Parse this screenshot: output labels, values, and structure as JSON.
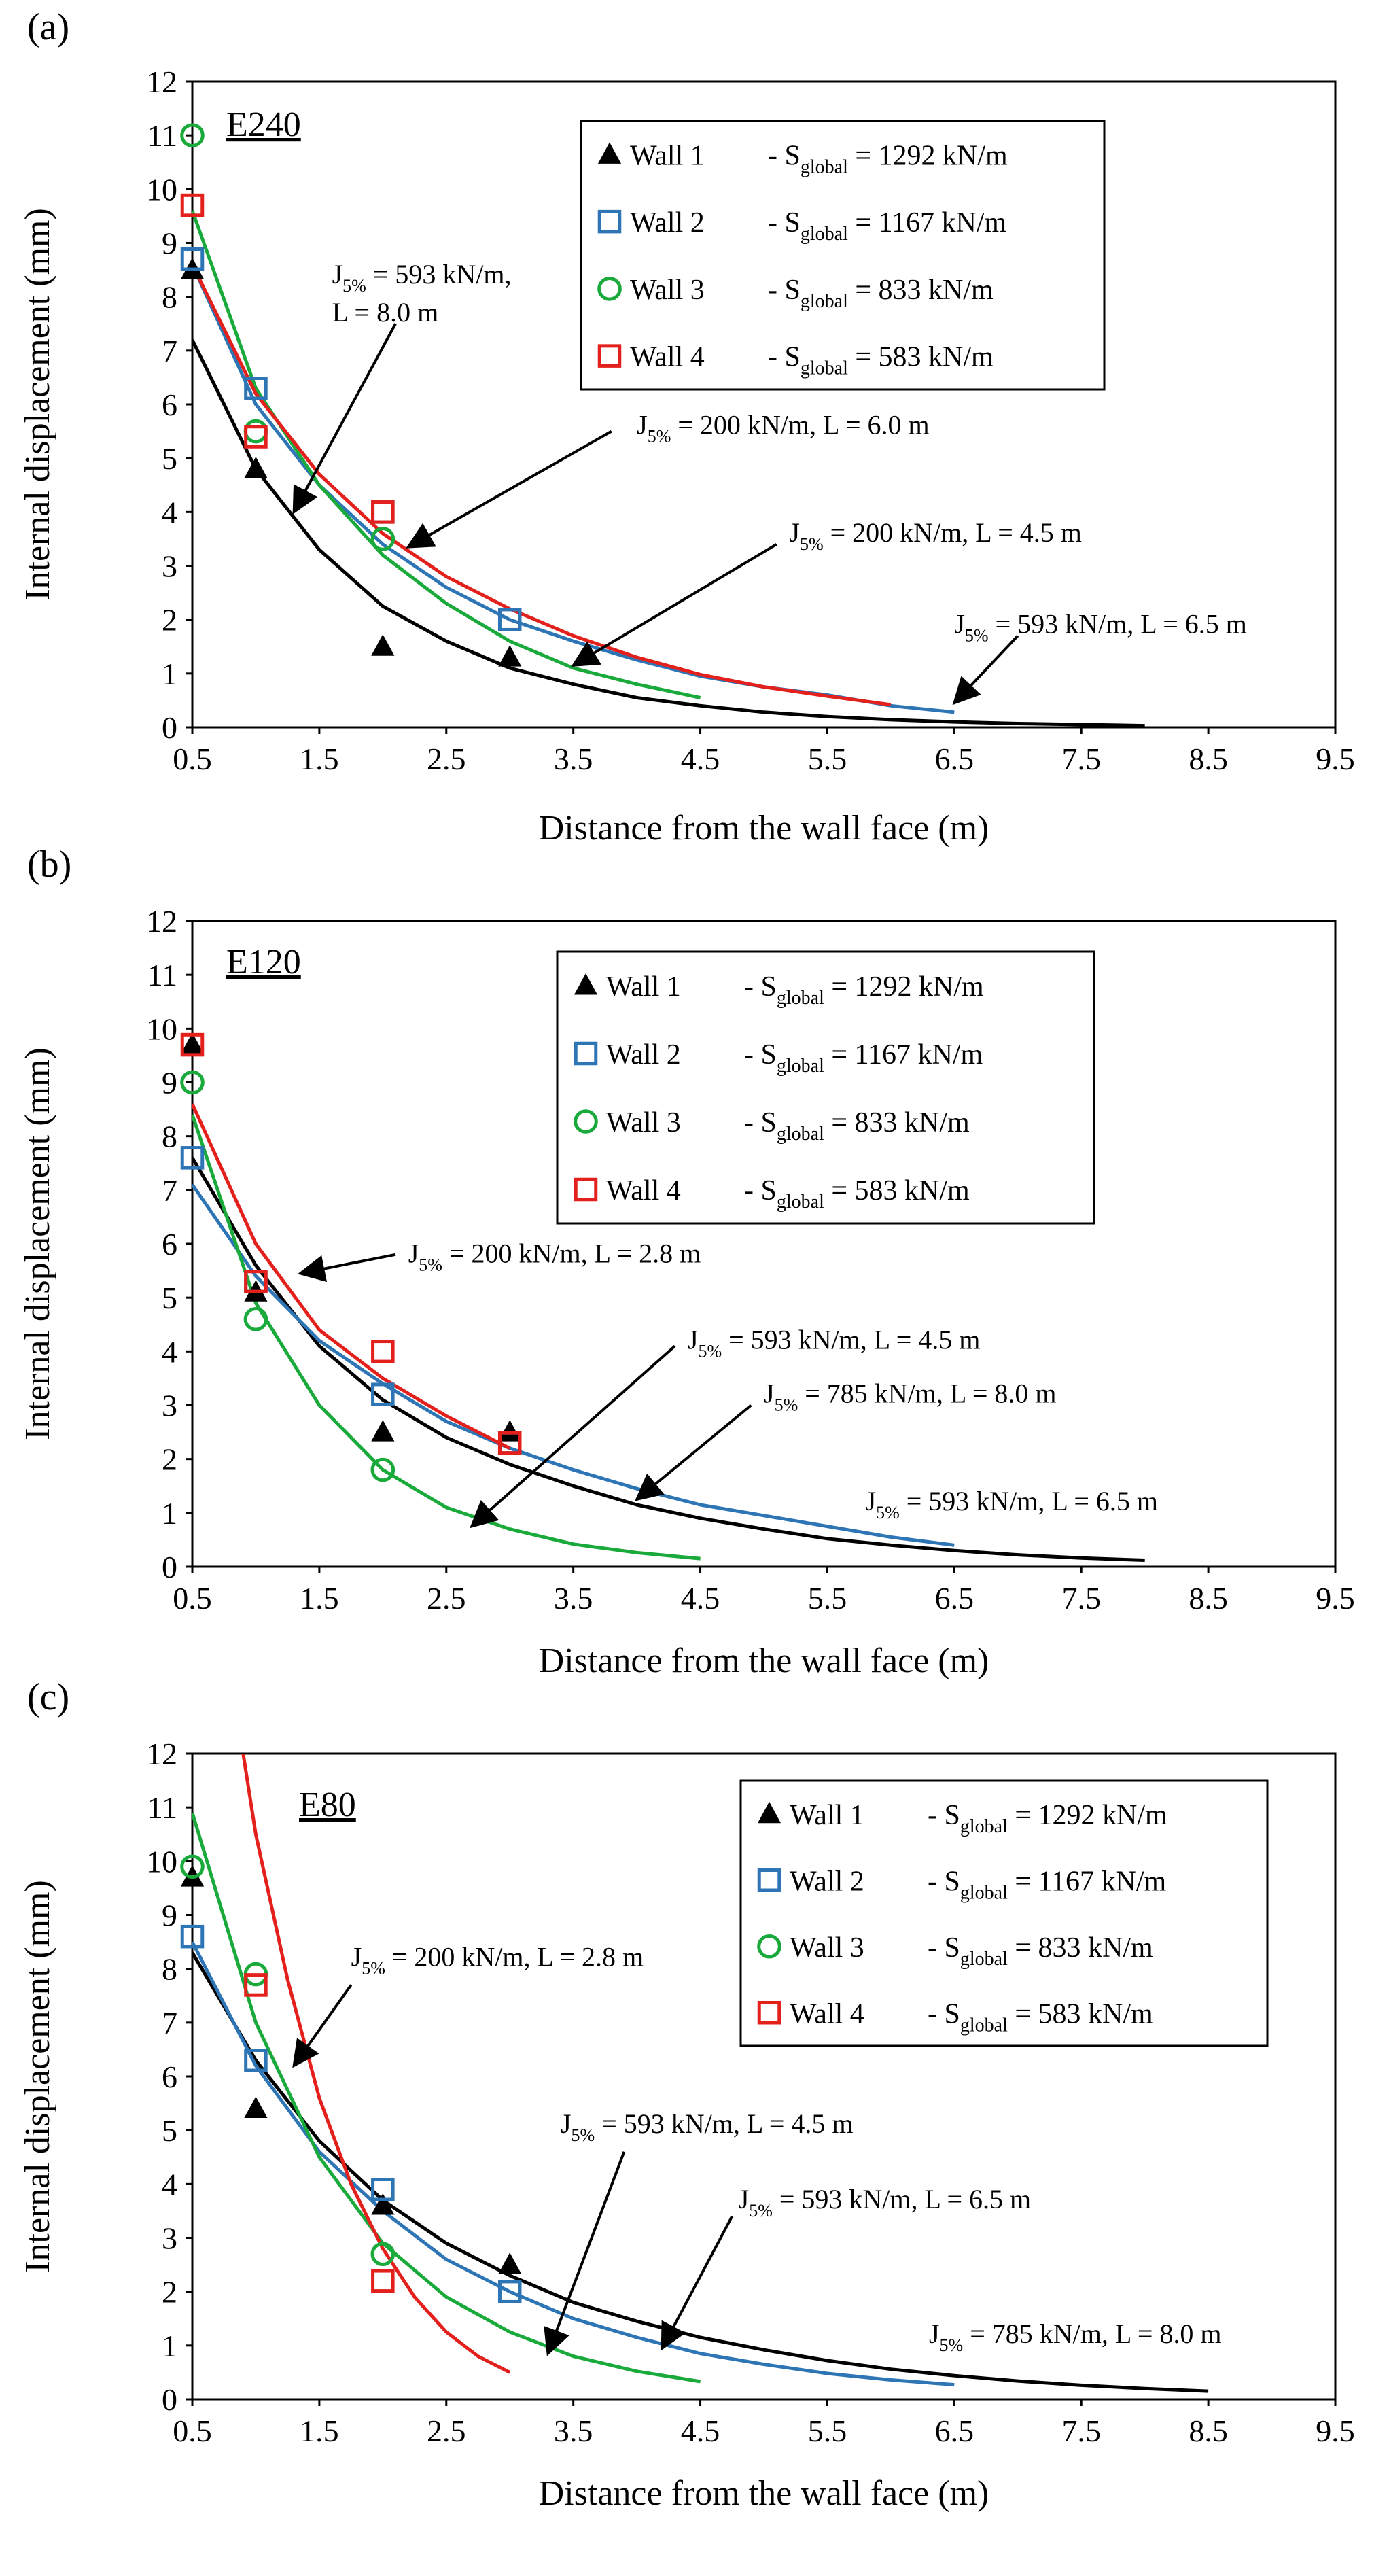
{
  "chart_data": [
    {
      "panel": "(a)",
      "type": "scatter",
      "case_label": "E240",
      "xlabel": "Distance from the wall face (m)",
      "ylabel": "Internal displacement (mm)",
      "xlim": [
        0.5,
        9.5
      ],
      "ylim": [
        0,
        12
      ],
      "xticks": [
        "0.5",
        "1.5",
        "2.5",
        "3.5",
        "4.5",
        "5.5",
        "6.5",
        "7.5",
        "8.5",
        "9.5"
      ],
      "yticks": [
        "0",
        "1",
        "2",
        "3",
        "4",
        "5",
        "6",
        "7",
        "8",
        "9",
        "10",
        "11",
        "12"
      ],
      "legend_position": "top-right",
      "legend": [
        {
          "wall": "Wall 1",
          "prefix": "- S",
          "sub": "global",
          "value": " = 1292 kN/m",
          "marker": "triangle",
          "color": "#000000"
        },
        {
          "wall": "Wall 2",
          "prefix": "- S",
          "sub": "global",
          "value": " = 1167 kN/m",
          "marker": "square",
          "color": "#2e75b6"
        },
        {
          "wall": "Wall 3",
          "prefix": "- S",
          "sub": "global",
          "value": " = 833 kN/m",
          "marker": "circle",
          "color": "#1aaa3c"
        },
        {
          "wall": "Wall 4",
          "prefix": "- S",
          "sub": "global",
          "value": " = 583 kN/m",
          "marker": "square",
          "color": "#e3201b"
        }
      ],
      "points": [
        {
          "series": "Wall 1",
          "marker": "triangle",
          "color": "#000000",
          "x": [
            0.5,
            1.0,
            2.0,
            3.0
          ],
          "y": [
            8.5,
            4.8,
            1.5,
            1.3
          ]
        },
        {
          "series": "Wall 2",
          "marker": "square",
          "color": "#2e75b6",
          "x": [
            0.5,
            1.0,
            2.0,
            3.0
          ],
          "y": [
            8.7,
            6.3,
            4.0,
            2.0
          ]
        },
        {
          "series": "Wall 3",
          "marker": "circle",
          "color": "#1aaa3c",
          "x": [
            0.5,
            1.0,
            2.0
          ],
          "y": [
            11.0,
            5.5,
            3.5
          ]
        },
        {
          "series": "Wall 4",
          "marker": "square",
          "color": "#e3201b",
          "x": [
            0.5,
            1.0,
            2.0
          ],
          "y": [
            9.7,
            5.4,
            4.0
          ]
        }
      ],
      "curves": [
        {
          "color": "#000000",
          "x": [
            0.5,
            1.0,
            1.5,
            2.0,
            2.5,
            3.0,
            3.5,
            4.0,
            4.5,
            5.0,
            5.5,
            6.0,
            6.5,
            7.0,
            7.5,
            8.0
          ],
          "y": [
            7.2,
            4.8,
            3.3,
            2.25,
            1.6,
            1.1,
            0.8,
            0.55,
            0.4,
            0.28,
            0.2,
            0.14,
            0.1,
            0.07,
            0.05,
            0.03
          ]
        },
        {
          "color": "#2e75b6",
          "x": [
            0.5,
            1.0,
            1.5,
            2.0,
            2.5,
            3.0,
            3.5,
            4.0,
            4.5,
            5.0,
            5.5,
            6.0,
            6.5
          ],
          "y": [
            8.6,
            6.0,
            4.5,
            3.4,
            2.6,
            2.0,
            1.6,
            1.25,
            0.95,
            0.75,
            0.6,
            0.4,
            0.28
          ]
        },
        {
          "color": "#1aaa3c",
          "x": [
            0.5,
            1.0,
            1.5,
            2.0,
            2.5,
            3.0,
            3.5,
            4.0,
            4.5
          ],
          "y": [
            9.6,
            6.3,
            4.5,
            3.2,
            2.3,
            1.6,
            1.1,
            0.8,
            0.55
          ]
        },
        {
          "color": "#e3201b",
          "x": [
            0.5,
            1.0,
            1.5,
            2.0,
            2.5,
            3.0,
            3.5,
            4.0,
            4.5,
            5.0,
            5.5,
            6.0
          ],
          "y": [
            8.6,
            6.2,
            4.7,
            3.6,
            2.8,
            2.2,
            1.7,
            1.3,
            0.98,
            0.75,
            0.58,
            0.42
          ]
        }
      ],
      "annotations": [
        {
          "line1_pre": "J",
          "line1_sub": "5%",
          "line1_post": " = 593 kN/m,",
          "line2": "L = 8.0 m",
          "text_x": 1.6,
          "text_y": 8.25,
          "tail_x": 2.1,
          "tail_y": 7.5,
          "head_x": 1.3,
          "head_y": 4.0
        },
        {
          "line1_pre": "J",
          "line1_sub": "5%",
          "line1_post": " = 200 kN/m, L = 6.0 m",
          "line2": "",
          "text_x": 4.0,
          "text_y": 5.45,
          "tail_x": 3.8,
          "tail_y": 5.5,
          "head_x": 2.2,
          "head_y": 3.35
        },
        {
          "line1_pre": "J",
          "line1_sub": "5%",
          "line1_post": " = 200 kN/m, L = 4.5 m",
          "line2": "",
          "text_x": 5.2,
          "text_y": 3.45,
          "tail_x": 5.1,
          "tail_y": 3.4,
          "head_x": 3.5,
          "head_y": 1.15
        },
        {
          "line1_pre": "J",
          "line1_sub": "5%",
          "line1_post": " = 593 kN/m, L = 6.5 m",
          "line2": "",
          "text_x": 6.5,
          "text_y": 1.75,
          "tail_x": 7.0,
          "tail_y": 1.7,
          "head_x": 6.5,
          "head_y": 0.45
        }
      ]
    },
    {
      "panel": "(b)",
      "type": "scatter",
      "case_label": "E120",
      "xlabel": "Distance from the wall face (m)",
      "ylabel": "Internal displacement (mm)",
      "xlim": [
        0.5,
        9.5
      ],
      "ylim": [
        0,
        12
      ],
      "xticks": [
        "0.5",
        "1.5",
        "2.5",
        "3.5",
        "4.5",
        "5.5",
        "6.5",
        "7.5",
        "8.5",
        "9.5"
      ],
      "yticks": [
        "0",
        "1",
        "2",
        "3",
        "4",
        "5",
        "6",
        "7",
        "8",
        "9",
        "10",
        "11",
        "12"
      ],
      "legend_position": "top-right",
      "legend": [
        {
          "wall": "Wall 1",
          "prefix": "- S",
          "sub": "global",
          "value": " = 1292 kN/m",
          "marker": "triangle",
          "color": "#000000"
        },
        {
          "wall": "Wall 2",
          "prefix": "- S",
          "sub": "global",
          "value": " = 1167 kN/m",
          "marker": "square",
          "color": "#2e75b6"
        },
        {
          "wall": "Wall 3",
          "prefix": "- S",
          "sub": "global",
          "value": " = 833 kN/m",
          "marker": "circle",
          "color": "#1aaa3c"
        },
        {
          "wall": "Wall 4",
          "prefix": "- S",
          "sub": "global",
          "value": " = 583 kN/m",
          "marker": "square",
          "color": "#e3201b"
        }
      ],
      "points": [
        {
          "series": "Wall 1",
          "marker": "triangle",
          "color": "#000000",
          "x": [
            0.5,
            1.0,
            2.0,
            3.0
          ],
          "y": [
            9.7,
            5.1,
            2.5,
            2.5
          ]
        },
        {
          "series": "Wall 2",
          "marker": "square",
          "color": "#2e75b6",
          "x": [
            0.5,
            1.0,
            2.0,
            3.0
          ],
          "y": [
            7.6,
            5.3,
            3.2,
            2.3
          ]
        },
        {
          "series": "Wall 3",
          "marker": "circle",
          "color": "#1aaa3c",
          "x": [
            0.5,
            1.0,
            2.0
          ],
          "y": [
            9.0,
            4.6,
            1.8
          ]
        },
        {
          "series": "Wall 4",
          "marker": "square",
          "color": "#e3201b",
          "x": [
            0.5,
            1.0,
            2.0,
            3.0
          ],
          "y": [
            9.7,
            5.3,
            4.0,
            2.3
          ]
        }
      ],
      "curves": [
        {
          "color": "#000000",
          "x": [
            0.5,
            1.0,
            1.5,
            2.0,
            2.5,
            3.0,
            3.5,
            4.0,
            4.5,
            5.0,
            5.5,
            6.0,
            6.5,
            7.0,
            7.5,
            8.0
          ],
          "y": [
            7.6,
            5.6,
            4.1,
            3.1,
            2.4,
            1.9,
            1.5,
            1.15,
            0.9,
            0.7,
            0.52,
            0.4,
            0.3,
            0.22,
            0.16,
            0.12
          ]
        },
        {
          "color": "#2e75b6",
          "x": [
            0.5,
            1.0,
            1.5,
            2.0,
            2.5,
            3.0,
            3.5,
            4.0,
            4.5,
            5.0,
            5.5,
            6.0,
            6.5
          ],
          "y": [
            7.1,
            5.4,
            4.2,
            3.4,
            2.7,
            2.2,
            1.8,
            1.45,
            1.15,
            0.95,
            0.75,
            0.55,
            0.4
          ]
        },
        {
          "color": "#1aaa3c",
          "x": [
            0.5,
            1.0,
            1.5,
            2.0,
            2.5,
            3.0,
            3.5,
            4.0,
            4.5
          ],
          "y": [
            8.4,
            4.9,
            3.0,
            1.8,
            1.1,
            0.7,
            0.42,
            0.26,
            0.15
          ]
        },
        {
          "color": "#e3201b",
          "x": [
            0.5,
            1.0,
            1.5,
            2.0,
            2.5,
            3.0
          ],
          "y": [
            8.6,
            6.0,
            4.4,
            3.5,
            2.8,
            2.2
          ]
        }
      ],
      "annotations": [
        {
          "line1_pre": "J",
          "line1_sub": "5%",
          "line1_post": " = 200 kN/m, L = 2.8 m",
          "line2": "",
          "text_x": 2.2,
          "text_y": 5.65,
          "tail_x": 2.1,
          "tail_y": 5.8,
          "head_x": 1.35,
          "head_y": 5.45
        },
        {
          "line1_pre": "J",
          "line1_sub": "5%",
          "line1_post": " = 593 kN/m, L = 4.5 m",
          "line2": "",
          "text_x": 4.4,
          "text_y": 4.05,
          "tail_x": 4.3,
          "tail_y": 4.1,
          "head_x": 2.7,
          "head_y": 0.75
        },
        {
          "line1_pre": "J",
          "line1_sub": "5%",
          "line1_post": " = 785 kN/m, L = 8.0 m",
          "line2": "",
          "text_x": 5.0,
          "text_y": 3.05,
          "tail_x": 4.9,
          "tail_y": 3.0,
          "head_x": 4.0,
          "head_y": 1.25
        },
        {
          "line1_pre": "J",
          "line1_sub": "5%",
          "line1_post": " = 593 kN/m, L = 6.5 m",
          "line2": "",
          "text_x": 5.8,
          "text_y": 1.05,
          "tail_x": 0,
          "tail_y": 0,
          "head_x": 0,
          "head_y": 0
        }
      ]
    },
    {
      "panel": "(c)",
      "type": "scatter",
      "case_label": "E80",
      "xlabel": "Distance from the wall face (m)",
      "ylabel": "Internal displacement (mm)",
      "xlim": [
        0.5,
        9.5
      ],
      "ylim": [
        0,
        12
      ],
      "xticks": [
        "0.5",
        "1.5",
        "2.5",
        "3.5",
        "4.5",
        "5.5",
        "6.5",
        "7.5",
        "8.5",
        "9.5"
      ],
      "yticks": [
        "0",
        "1",
        "2",
        "3",
        "4",
        "5",
        "6",
        "7",
        "8",
        "9",
        "10",
        "11",
        "12"
      ],
      "legend_position": "top-right",
      "legend": [
        {
          "wall": "Wall 1",
          "prefix": "- S",
          "sub": "global",
          "value": " = 1292 kN/m",
          "marker": "triangle",
          "color": "#000000"
        },
        {
          "wall": "Wall 2",
          "prefix": "- S",
          "sub": "global",
          "value": " = 1167 kN/m",
          "marker": "square",
          "color": "#2e75b6"
        },
        {
          "wall": "Wall 3",
          "prefix": "- S",
          "sub": "global",
          "value": " = 833 kN/m",
          "marker": "circle",
          "color": "#1aaa3c"
        },
        {
          "wall": "Wall 4",
          "prefix": "- S",
          "sub": "global",
          "value": " = 583 kN/m",
          "marker": "square",
          "color": "#e3201b"
        }
      ],
      "points": [
        {
          "series": "Wall 1",
          "marker": "triangle",
          "color": "#000000",
          "x": [
            0.5,
            1.0,
            2.0,
            3.0
          ],
          "y": [
            9.7,
            5.4,
            3.6,
            2.5
          ]
        },
        {
          "series": "Wall 2",
          "marker": "square",
          "color": "#2e75b6",
          "x": [
            0.5,
            1.0,
            2.0,
            3.0
          ],
          "y": [
            8.6,
            6.3,
            3.9,
            2.0
          ]
        },
        {
          "series": "Wall 3",
          "marker": "circle",
          "color": "#1aaa3c",
          "x": [
            0.5,
            1.0,
            2.0
          ],
          "y": [
            9.9,
            7.9,
            2.7
          ]
        },
        {
          "series": "Wall 4",
          "marker": "square",
          "color": "#e3201b",
          "x": [
            1.0,
            2.0
          ],
          "y": [
            7.7,
            2.2
          ]
        }
      ],
      "curves": [
        {
          "color": "#000000",
          "x": [
            0.5,
            1.0,
            1.5,
            2.0,
            2.5,
            3.0,
            3.5,
            4.0,
            4.5,
            5.0,
            5.5,
            6.0,
            6.5,
            7.0,
            7.5,
            8.0,
            8.5
          ],
          "y": [
            8.3,
            6.3,
            4.8,
            3.7,
            2.9,
            2.3,
            1.8,
            1.45,
            1.15,
            0.92,
            0.72,
            0.56,
            0.44,
            0.34,
            0.26,
            0.2,
            0.15
          ]
        },
        {
          "color": "#2e75b6",
          "x": [
            0.5,
            1.0,
            1.5,
            2.0,
            2.5,
            3.0,
            3.5,
            4.0,
            4.5,
            5.0,
            5.5,
            6.0,
            6.5
          ],
          "y": [
            8.5,
            6.2,
            4.6,
            3.5,
            2.6,
            2.0,
            1.5,
            1.15,
            0.85,
            0.65,
            0.48,
            0.36,
            0.27
          ]
        },
        {
          "color": "#1aaa3c",
          "x": [
            0.5,
            1.0,
            1.5,
            2.0,
            2.5,
            3.0,
            3.5,
            4.0,
            4.5
          ],
          "y": [
            10.9,
            7.0,
            4.5,
            2.9,
            1.9,
            1.25,
            0.8,
            0.52,
            0.33
          ]
        },
        {
          "color": "#e3201b",
          "x": [
            0.9,
            1.0,
            1.25,
            1.5,
            1.75,
            2.0,
            2.25,
            2.5,
            2.75,
            3.0
          ],
          "y": [
            12.0,
            10.5,
            7.8,
            5.6,
            4.0,
            2.8,
            1.9,
            1.25,
            0.8,
            0.5
          ]
        }
      ],
      "annotations": [
        {
          "line1_pre": "J",
          "line1_sub": "5%",
          "line1_post": " = 200 kN/m, L = 2.8 m",
          "line2": "",
          "text_x": 1.75,
          "text_y": 8.05,
          "tail_x": 1.75,
          "tail_y": 7.7,
          "head_x": 1.3,
          "head_y": 6.2
        },
        {
          "line1_pre": "J",
          "line1_sub": "5%",
          "line1_post": " = 593 kN/m, L = 4.5 m",
          "line2": "",
          "text_x": 3.4,
          "text_y": 4.95,
          "tail_x": 3.9,
          "tail_y": 4.6,
          "head_x": 3.3,
          "head_y": 0.85
        },
        {
          "line1_pre": "J",
          "line1_sub": "5%",
          "line1_post": " = 593 kN/m, L = 6.5 m",
          "line2": "",
          "text_x": 4.8,
          "text_y": 3.55,
          "tail_x": 4.75,
          "tail_y": 3.4,
          "head_x": 4.2,
          "head_y": 0.95
        },
        {
          "line1_pre": "J",
          "line1_sub": "5%",
          "line1_post": " = 785 kN/m, L = 8.0 m",
          "line2": "",
          "text_x": 6.3,
          "text_y": 1.05,
          "tail_x": 0,
          "tail_y": 0,
          "head_x": 0,
          "head_y": 0
        }
      ]
    }
  ]
}
